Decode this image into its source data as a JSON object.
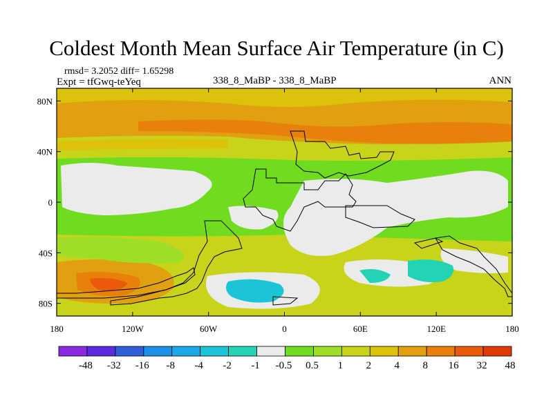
{
  "title": "Coldest Month Mean Surface Air Temperature (in C)",
  "stats": "rmsd= 3.2052 diff= 1.65298",
  "experiment": "Expt = tfGwq-teYeq",
  "subtitle": "338_8_MaBP - 338_8_MaBP",
  "season": "ANN",
  "map": {
    "projection": "cylindrical equidistant",
    "lon_range": [
      -180,
      180
    ],
    "lat_range": [
      -90,
      90
    ],
    "lat_ticks": [
      {
        "value": 80,
        "label": "80N"
      },
      {
        "value": 40,
        "label": "40N"
      },
      {
        "value": 0,
        "label": "0"
      },
      {
        "value": -40,
        "label": "40S"
      },
      {
        "value": -80,
        "label": "80S"
      }
    ],
    "lon_ticks": [
      {
        "value": -180,
        "label": "180"
      },
      {
        "value": -120,
        "label": "120W"
      },
      {
        "value": -60,
        "label": "60W"
      },
      {
        "value": 0,
        "label": "0"
      },
      {
        "value": 60,
        "label": "60E"
      },
      {
        "value": 120,
        "label": "120E"
      },
      {
        "value": 180,
        "label": "180"
      }
    ]
  },
  "colorbar": {
    "colors": [
      "#8a2be2",
      "#5a2ce0",
      "#2c5fd8",
      "#1e90e8",
      "#19a8e8",
      "#1cc4d8",
      "#22d4b4",
      "#ebebeb",
      "#70dc20",
      "#9ede28",
      "#c8d41a",
      "#dcc20a",
      "#e0a010",
      "#e8800c",
      "#ea5a0a",
      "#e23a06"
    ],
    "labels": [
      "-48",
      "-32",
      "-16",
      "-8",
      "-4",
      "-2",
      "-1",
      "-0.5",
      "0.5",
      "1",
      "2",
      "4",
      "8",
      "16",
      "32",
      "48"
    ]
  },
  "colors": {
    "background_zero": "#ebebeb",
    "band_orange": "#e0a010",
    "band_dark_orange": "#e8800c",
    "band_gold": "#dcc20a",
    "band_yellow_green": "#c8d41a",
    "band_light_green": "#9ede28",
    "band_green": "#70dc20",
    "band_cyan": "#1cc4d8",
    "band_light_cyan": "#22d4b4",
    "band_red_orange": "#ea5a0a"
  }
}
